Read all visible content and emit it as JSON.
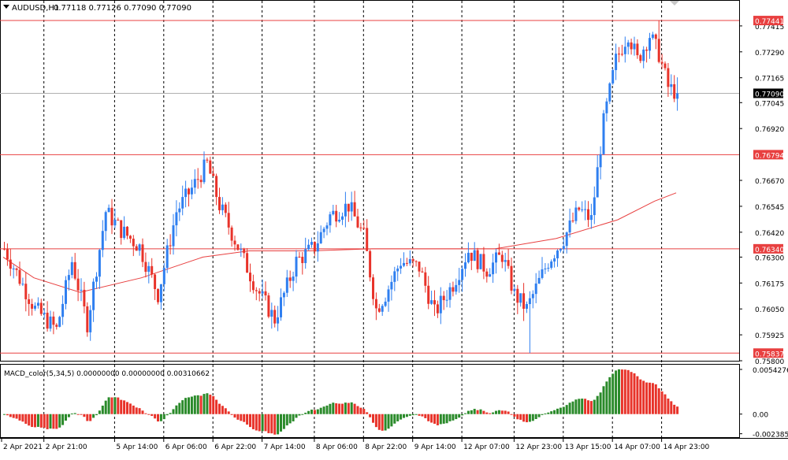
{
  "header": {
    "symbol_label": "AUDUSD,H1",
    "ohlc": "0.77118 0.77126 0.77090 0.77090"
  },
  "macd_panel": {
    "label": "MACD_color(5,34,5) 0.00000000 0.00000000 0.00310662"
  },
  "colors": {
    "bull": "#2f7ff0",
    "bear": "#e8332a",
    "horizontal_line": "#e84040",
    "moving_average": "#e84040",
    "macd_positive": "#2a8a2a",
    "macd_negative": "#e8332a",
    "grid_dashes": "#000000",
    "border": "#000000"
  },
  "price_axis": {
    "ticks": [
      "0.77415",
      "0.77290",
      "0.77165",
      "0.77045",
      "0.76920",
      "0.76670",
      "0.76545",
      "0.76420",
      "0.76300",
      "0.76175",
      "0.76050",
      "0.75925",
      "0.75800"
    ],
    "badges": [
      {
        "label": "0.77441",
        "value": 0.77441,
        "kind": "level"
      },
      {
        "label": "0.77090",
        "value": 0.7709,
        "kind": "current"
      },
      {
        "label": "0.76794",
        "value": 0.76794,
        "kind": "level"
      },
      {
        "label": "0.76340",
        "value": 0.7634,
        "kind": "level"
      },
      {
        "label": "0.75837",
        "value": 0.75837,
        "kind": "level"
      }
    ]
  },
  "macd_axis": {
    "ticks": [
      "0.0054276",
      "0.00",
      "-0.002385"
    ]
  },
  "time_axis": {
    "labels": [
      "2 Apr 2021",
      "2 Apr 21:00",
      "5 Apr 14:00",
      "6 Apr 06:00",
      "6 Apr 22:00",
      "7 Apr 14:00",
      "8 Apr 06:00",
      "8 Apr 22:00",
      "9 Apr 14:00",
      "12 Apr 07:00",
      "12 Apr 23:00",
      "13 Apr 15:00",
      "14 Apr 07:00",
      "14 Apr 23:00"
    ]
  },
  "chart_data": {
    "type": "candlestick",
    "price_range": [
      0.758,
      0.7754
    ],
    "macd_range": [
      -0.0028,
      0.006
    ],
    "horizontal_levels": [
      0.77441,
      0.76794,
      0.7634,
      0.75837
    ],
    "current_price": 0.7709,
    "period_separators_after_bar": [
      13,
      36,
      52,
      68,
      84,
      101,
      117,
      133,
      149,
      166,
      182,
      198,
      214
    ],
    "moving_average": [
      [
        0,
        0.763
      ],
      [
        10,
        0.762
      ],
      [
        25,
        0.7613
      ],
      [
        45,
        0.762
      ],
      [
        65,
        0.763
      ],
      [
        80,
        0.7633
      ],
      [
        100,
        0.7633
      ],
      [
        120,
        0.7634
      ],
      [
        140,
        0.7634
      ],
      [
        160,
        0.7634
      ],
      [
        180,
        0.7639
      ],
      [
        200,
        0.7648
      ],
      [
        212,
        0.7657
      ],
      [
        219,
        0.7661
      ]
    ],
    "candles_key": "o,c,h,l per hourly bar; rising MACD histogram bars colored green, falling red",
    "sections": []
  }
}
